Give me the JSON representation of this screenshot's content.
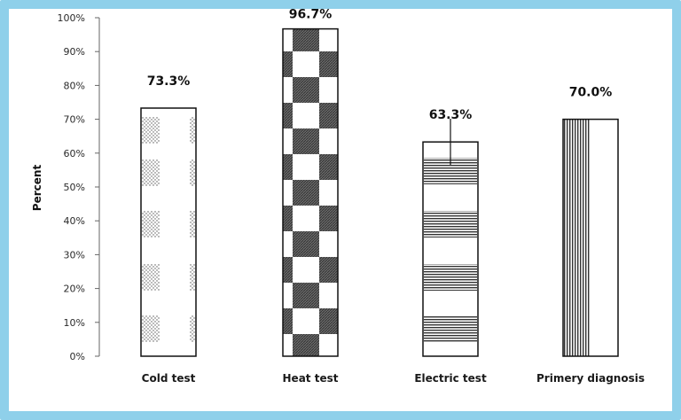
{
  "chart_data": {
    "type": "bar",
    "categories": [
      "Cold test",
      "Heat test",
      "Electric test",
      "Primery diagnosis"
    ],
    "values": [
      73.3,
      96.7,
      63.3,
      70.0
    ],
    "data_labels": [
      "73.3%",
      "96.7%",
      "63.3%",
      "70.0%"
    ],
    "title": "",
    "xlabel": "",
    "ylabel": "Percent",
    "ylim": [
      0,
      100
    ],
    "yticks": [
      "0%",
      "10%",
      "20%",
      "30%",
      "40%",
      "50%",
      "60%",
      "70%",
      "80%",
      "90%",
      "100%"
    ],
    "grid": false,
    "legend": "none",
    "frame_color": "#8fd0ea"
  }
}
